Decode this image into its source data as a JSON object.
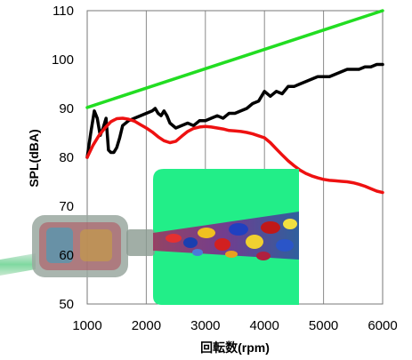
{
  "chart_data": {
    "type": "line",
    "title": "",
    "xlabel": "回転数(rpm)",
    "ylabel": "SPL(dBA)",
    "xlim": [
      1000,
      6000
    ],
    "ylim": [
      50,
      110
    ],
    "x_ticks": [
      1000,
      2000,
      3000,
      4000,
      5000,
      6000
    ],
    "y_ticks": [
      50,
      60,
      70,
      80,
      90,
      100,
      110
    ],
    "grid": "vertical",
    "legend": "none",
    "colors": {
      "green": "#22dd22",
      "black": "#000000",
      "red": "#ee1111"
    },
    "series": [
      {
        "color": "#22dd22",
        "x": [
          1000,
          6000
        ],
        "y": [
          90.2,
          110.0
        ]
      },
      {
        "color": "#000000",
        "x": [
          1000,
          1060,
          1120,
          1170,
          1220,
          1270,
          1320,
          1360,
          1400,
          1450,
          1500,
          1550,
          1600,
          1700,
          1800,
          1900,
          2000,
          2100,
          2150,
          2200,
          2250,
          2300,
          2350,
          2400,
          2500,
          2600,
          2700,
          2800,
          2900,
          3000,
          3100,
          3200,
          3300,
          3400,
          3500,
          3600,
          3700,
          3800,
          3900,
          4000,
          4100,
          4200,
          4300,
          4400,
          4500,
          4600,
          4700,
          4800,
          4900,
          5000,
          5100,
          5200,
          5300,
          5400,
          5500,
          5600,
          5700,
          5800,
          5900,
          6000
        ],
        "y": [
          80.0,
          85.0,
          89.5,
          88.0,
          84.5,
          86.0,
          88.0,
          81.5,
          81.0,
          81.0,
          82.0,
          84.0,
          86.5,
          87.5,
          88.0,
          88.5,
          89.0,
          89.5,
          90.0,
          89.0,
          88.5,
          89.5,
          88.5,
          87.0,
          86.0,
          86.5,
          87.0,
          86.5,
          87.5,
          87.5,
          88.0,
          88.5,
          88.0,
          89.0,
          89.0,
          89.5,
          90.0,
          91.0,
          91.5,
          93.5,
          92.5,
          93.5,
          93.0,
          94.5,
          94.5,
          95.0,
          95.5,
          96.0,
          96.5,
          96.5,
          96.5,
          97.0,
          97.5,
          98.0,
          98.0,
          98.0,
          98.5,
          98.5,
          99.0,
          99.0
        ]
      },
      {
        "color": "#ee1111",
        "x": [
          1000,
          1100,
          1200,
          1300,
          1400,
          1500,
          1600,
          1700,
          1800,
          1900,
          2000,
          2100,
          2200,
          2300,
          2400,
          2500,
          2600,
          2700,
          2800,
          2900,
          3000,
          3100,
          3200,
          3300,
          3400,
          3500,
          3600,
          3700,
          3800,
          3900,
          4000,
          4100,
          4200,
          4300,
          4400,
          4500,
          4600,
          4700,
          4800,
          4900,
          5000,
          5100,
          5200,
          5300,
          5400,
          5500,
          5600,
          5700,
          5800,
          5900,
          6000
        ],
        "y": [
          80.0,
          82.5,
          84.5,
          86.0,
          87.3,
          87.9,
          88.0,
          87.8,
          87.4,
          86.7,
          86.0,
          85.2,
          84.2,
          83.4,
          83.0,
          83.3,
          84.3,
          85.3,
          85.9,
          86.2,
          86.3,
          86.2,
          86.0,
          85.8,
          85.5,
          85.4,
          85.3,
          85.1,
          84.8,
          84.4,
          84.0,
          83.0,
          81.7,
          80.5,
          79.3,
          78.3,
          77.4,
          76.7,
          76.2,
          75.8,
          75.5,
          75.3,
          75.2,
          75.1,
          75.0,
          74.8,
          74.5,
          74.1,
          73.6,
          73.1,
          72.8
        ]
      }
    ]
  }
}
